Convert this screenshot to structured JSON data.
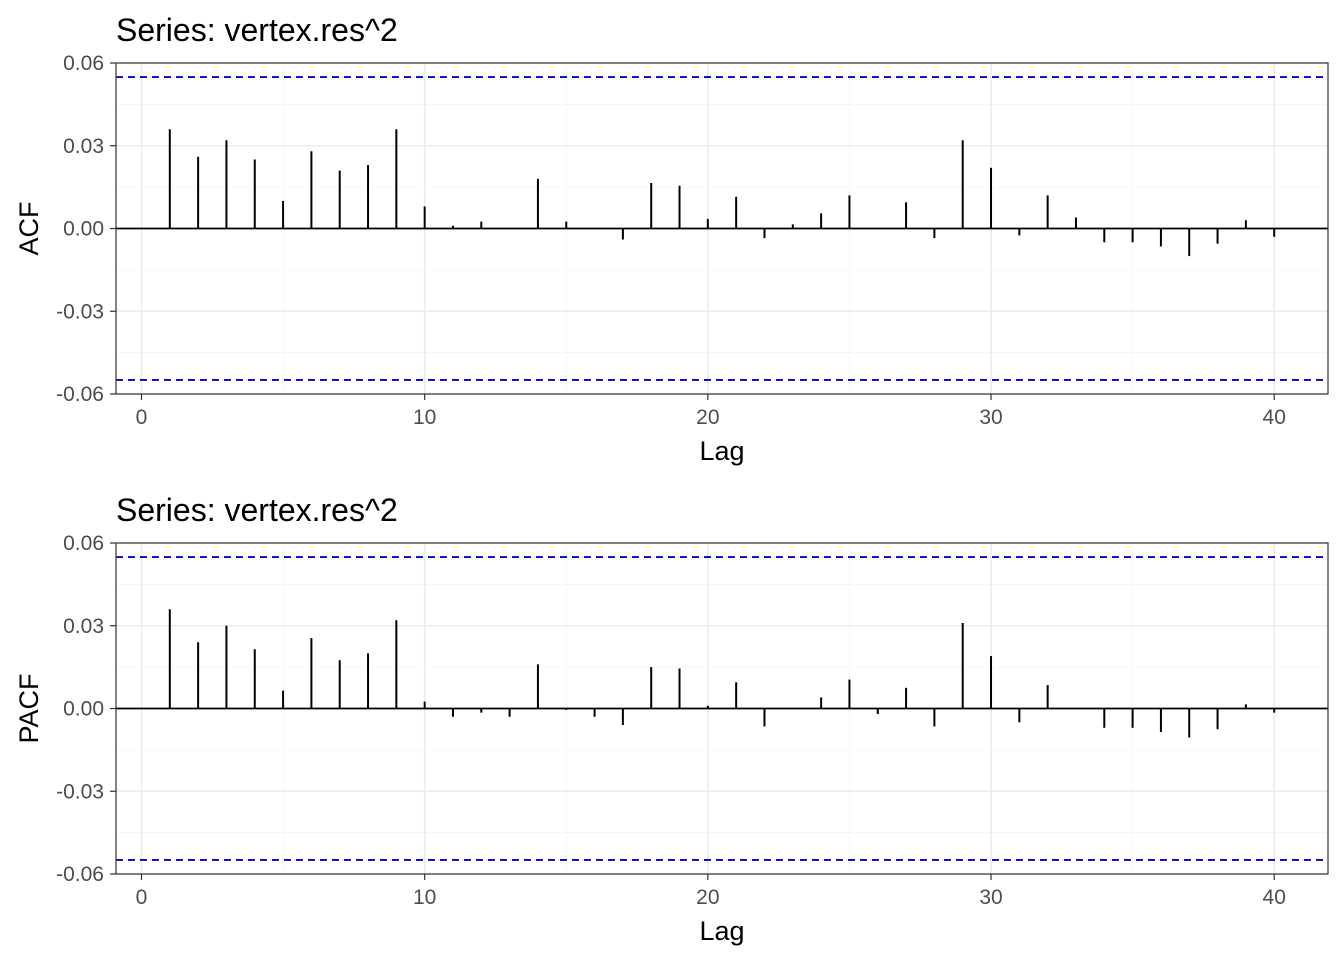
{
  "colors": {
    "ci": "#0000cc",
    "bars": "#000000"
  },
  "chart_data": [
    {
      "type": "bar",
      "title": "Series: vertex.res^2",
      "xlabel": "Lag",
      "ylabel": "ACF",
      "xlim": [
        -0.9,
        41.9
      ],
      "ylim": [
        -0.06,
        0.06
      ],
      "xticks": [
        0,
        10,
        20,
        30,
        40
      ],
      "xtick_labels": [
        "0",
        "10",
        "20",
        "30",
        "40"
      ],
      "yticks": [
        -0.06,
        -0.03,
        0.0,
        0.03,
        0.06
      ],
      "ytick_labels": [
        "-0.06",
        "-0.03",
        "0.00",
        "0.03",
        "0.06"
      ],
      "grid": true,
      "ci": [
        0.0549,
        -0.0549
      ],
      "x": [
        1,
        2,
        3,
        4,
        5,
        6,
        7,
        8,
        9,
        10,
        11,
        12,
        13,
        14,
        15,
        16,
        17,
        18,
        19,
        20,
        21,
        22,
        23,
        24,
        25,
        26,
        27,
        28,
        29,
        30,
        31,
        32,
        33,
        34,
        35,
        36,
        37,
        38,
        39,
        40
      ],
      "values": [
        0.036,
        0.026,
        0.032,
        0.025,
        0.01,
        0.028,
        0.021,
        0.023,
        0.036,
        0.008,
        0.001,
        0.0025,
        0.0,
        0.018,
        0.0025,
        0.0,
        -0.004,
        0.0165,
        0.0155,
        0.0035,
        0.0115,
        -0.0035,
        0.0015,
        0.0055,
        0.012,
        0.0,
        0.0095,
        -0.0035,
        0.032,
        0.022,
        -0.0025,
        0.012,
        0.004,
        -0.005,
        -0.005,
        -0.0065,
        -0.01,
        -0.0055,
        0.003,
        -0.003
      ]
    },
    {
      "type": "bar",
      "title": "Series: vertex.res^2",
      "xlabel": "Lag",
      "ylabel": "PACF",
      "xlim": [
        -0.9,
        41.9
      ],
      "ylim": [
        -0.06,
        0.06
      ],
      "xticks": [
        0,
        10,
        20,
        30,
        40
      ],
      "xtick_labels": [
        "0",
        "10",
        "20",
        "30",
        "40"
      ],
      "yticks": [
        -0.06,
        -0.03,
        0.0,
        0.03,
        0.06
      ],
      "ytick_labels": [
        "-0.06",
        "-0.03",
        "0.00",
        "0.03",
        "0.06"
      ],
      "grid": true,
      "ci": [
        0.0549,
        -0.0549
      ],
      "x": [
        1,
        2,
        3,
        4,
        5,
        6,
        7,
        8,
        9,
        10,
        11,
        12,
        13,
        14,
        15,
        16,
        17,
        18,
        19,
        20,
        21,
        22,
        23,
        24,
        25,
        26,
        27,
        28,
        29,
        30,
        31,
        32,
        33,
        34,
        35,
        36,
        37,
        38,
        39,
        40
      ],
      "values": [
        0.036,
        0.024,
        0.03,
        0.0215,
        0.0065,
        0.0255,
        0.0175,
        0.02,
        0.032,
        0.0025,
        -0.003,
        -0.0015,
        -0.003,
        0.016,
        -0.0005,
        -0.003,
        -0.006,
        0.015,
        0.0145,
        0.001,
        0.0095,
        -0.0065,
        0.0,
        0.004,
        0.0105,
        -0.002,
        0.0075,
        -0.0065,
        0.031,
        0.019,
        -0.005,
        0.0085,
        0.0,
        -0.007,
        -0.007,
        -0.0085,
        -0.0105,
        -0.0075,
        0.0015,
        -0.0015
      ]
    }
  ]
}
